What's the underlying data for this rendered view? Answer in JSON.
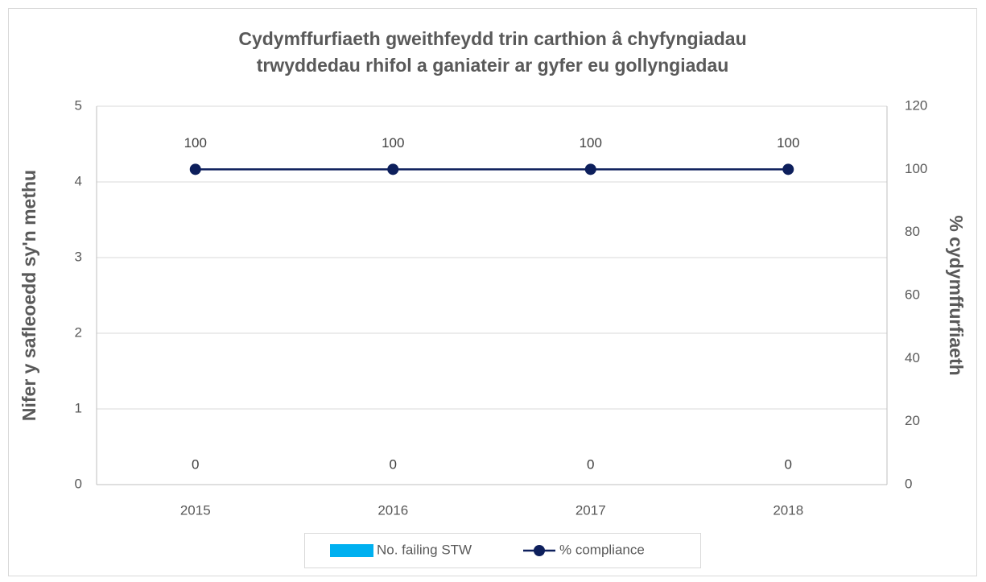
{
  "chart_data": {
    "type": "combo",
    "title": [
      "Cydymffurfiaeth gweithfeydd trin carthion â chyfyngiadau",
      "trwyddedau rhifol a ganiateir ar gyfer eu gollyngiadau"
    ],
    "ylabel": "Nifer y safleoedd sy'n methu",
    "y2label": "% cydymffurfiaeth",
    "categories": [
      "2015",
      "2016",
      "2017",
      "2018"
    ],
    "series": [
      {
        "name": "No. failing STW",
        "type": "bar",
        "color": "#00b0f0",
        "values": [
          0,
          0,
          0,
          0
        ]
      },
      {
        "name": "% compliance",
        "type": "line",
        "axis": "y2",
        "color": "#0d1f5c",
        "values": [
          100,
          100,
          100,
          100
        ]
      }
    ],
    "ylim": [
      0,
      5
    ],
    "yticks": [
      0,
      1,
      2,
      3,
      4,
      5
    ],
    "y2lim": [
      0,
      120
    ],
    "y2ticks": [
      0,
      20,
      40,
      60,
      80,
      100,
      120
    ],
    "grid": true,
    "legend": "bottom"
  }
}
